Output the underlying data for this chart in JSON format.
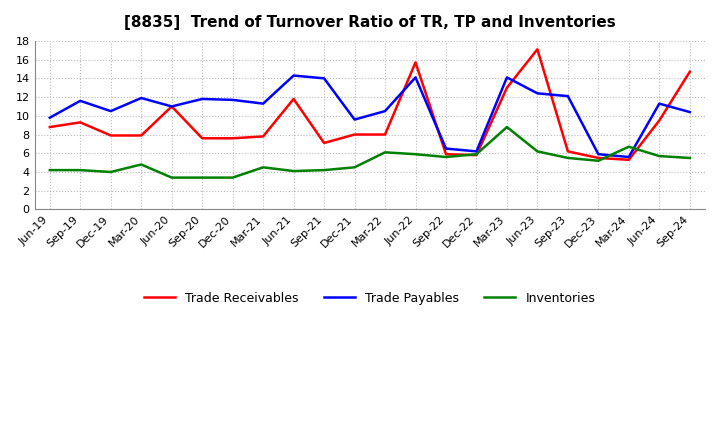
{
  "title": "[8835]  Trend of Turnover Ratio of TR, TP and Inventories",
  "x_labels": [
    "Jun-19",
    "Sep-19",
    "Dec-19",
    "Mar-20",
    "Jun-20",
    "Sep-20",
    "Dec-20",
    "Mar-21",
    "Jun-21",
    "Sep-21",
    "Dec-21",
    "Mar-22",
    "Jun-22",
    "Sep-22",
    "Dec-22",
    "Mar-23",
    "Jun-23",
    "Sep-23",
    "Dec-23",
    "Mar-24",
    "Jun-24",
    "Sep-24"
  ],
  "trade_receivables": [
    8.8,
    9.3,
    7.9,
    7.9,
    11.0,
    7.6,
    7.6,
    7.8,
    11.8,
    7.1,
    8.0,
    8.0,
    15.7,
    5.9,
    5.8,
    13.0,
    17.1,
    6.2,
    5.5,
    5.3,
    9.5,
    14.7
  ],
  "trade_payables": [
    9.8,
    11.6,
    10.5,
    11.9,
    11.0,
    11.8,
    11.7,
    11.3,
    14.3,
    14.0,
    9.6,
    10.5,
    14.1,
    6.5,
    6.2,
    14.1,
    12.4,
    12.1,
    5.9,
    5.6,
    11.3,
    10.4
  ],
  "inventories": [
    4.2,
    4.2,
    4.0,
    4.8,
    3.4,
    3.4,
    3.4,
    4.5,
    4.1,
    4.2,
    4.5,
    6.1,
    5.9,
    5.6,
    5.9,
    8.8,
    6.2,
    5.5,
    5.2,
    6.7,
    5.7,
    5.5
  ],
  "ylim": [
    0,
    18.0
  ],
  "yticks": [
    0.0,
    2.0,
    4.0,
    6.0,
    8.0,
    10.0,
    12.0,
    14.0,
    16.0,
    18.0
  ],
  "ytick_labels": [
    "0",
    "2",
    "4",
    "6",
    "8",
    "10",
    "12",
    "14",
    "16",
    "18"
  ],
  "color_tr": "#ff0000",
  "color_tp": "#0000ff",
  "color_inv": "#008000",
  "legend_labels": [
    "Trade Receivables",
    "Trade Payables",
    "Inventories"
  ],
  "background_color": "#ffffff",
  "plot_bg_color": "#ffffff",
  "grid_color": "#bbbbbb",
  "title_fontsize": 11,
  "tick_fontsize": 8,
  "legend_fontsize": 9,
  "linewidth": 1.8
}
